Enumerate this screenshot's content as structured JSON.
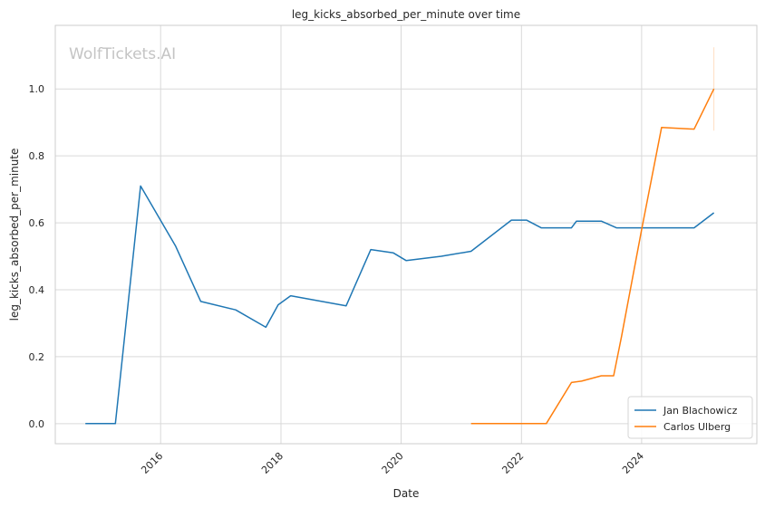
{
  "chart_data": {
    "type": "line",
    "title": "leg_kicks_absorbed_per_minute over time",
    "xlabel": "Date",
    "ylabel": "leg_kicks_absorbed_per_minute",
    "watermark": "WolfTickets.AI",
    "xlim": [
      "2014-04-01",
      "2025-12-01"
    ],
    "ylim": [
      -0.06,
      1.19
    ],
    "x_ticks": [
      {
        "label": "2016",
        "date": "2016-01-01"
      },
      {
        "label": "2018",
        "date": "2018-01-01"
      },
      {
        "label": "2020",
        "date": "2020-01-01"
      },
      {
        "label": "2022",
        "date": "2022-01-01"
      },
      {
        "label": "2024",
        "date": "2024-01-01"
      }
    ],
    "y_ticks": [
      {
        "label": "0.0",
        "value": 0.0
      },
      {
        "label": "0.2",
        "value": 0.2
      },
      {
        "label": "0.4",
        "value": 0.4
      },
      {
        "label": "0.6",
        "value": 0.6
      },
      {
        "label": "0.8",
        "value": 0.8
      },
      {
        "label": "1.0",
        "value": 1.0
      }
    ],
    "grid": true,
    "legend_position": "lower-right",
    "series": [
      {
        "name": "Jan Blachowicz",
        "color": "#1f77b4",
        "points": [
          {
            "x": "2014-10-01",
            "y": 0.0
          },
          {
            "x": "2015-04-01",
            "y": 0.0
          },
          {
            "x": "2015-09-01",
            "y": 0.71
          },
          {
            "x": "2016-04-01",
            "y": 0.53
          },
          {
            "x": "2016-09-01",
            "y": 0.365
          },
          {
            "x": "2017-04-01",
            "y": 0.34
          },
          {
            "x": "2017-10-01",
            "y": 0.288
          },
          {
            "x": "2017-12-15",
            "y": 0.355
          },
          {
            "x": "2018-03-01",
            "y": 0.382
          },
          {
            "x": "2019-02-01",
            "y": 0.352
          },
          {
            "x": "2019-07-01",
            "y": 0.52
          },
          {
            "x": "2019-11-15",
            "y": 0.51
          },
          {
            "x": "2020-02-01",
            "y": 0.487
          },
          {
            "x": "2020-09-01",
            "y": 0.5
          },
          {
            "x": "2021-03-01",
            "y": 0.515
          },
          {
            "x": "2021-11-01",
            "y": 0.608
          },
          {
            "x": "2022-02-01",
            "y": 0.608
          },
          {
            "x": "2022-05-01",
            "y": 0.585
          },
          {
            "x": "2022-11-01",
            "y": 0.585
          },
          {
            "x": "2022-12-01",
            "y": 0.605
          },
          {
            "x": "2023-05-01",
            "y": 0.605
          },
          {
            "x": "2023-08-01",
            "y": 0.585
          },
          {
            "x": "2024-11-15",
            "y": 0.585
          },
          {
            "x": "2025-03-15",
            "y": 0.63
          }
        ]
      },
      {
        "name": "Carlos Ulberg",
        "color": "#ff7f0e",
        "points": [
          {
            "x": "2021-03-01",
            "y": 0.0
          },
          {
            "x": "2022-06-01",
            "y": 0.0
          },
          {
            "x": "2022-11-01",
            "y": 0.123
          },
          {
            "x": "2023-01-01",
            "y": 0.127
          },
          {
            "x": "2023-05-01",
            "y": 0.143
          },
          {
            "x": "2023-07-15",
            "y": 0.143
          },
          {
            "x": "2023-09-01",
            "y": 0.26
          },
          {
            "x": "2024-01-01",
            "y": 0.58
          },
          {
            "x": "2024-05-01",
            "y": 0.885
          },
          {
            "x": "2024-11-15",
            "y": 0.88
          },
          {
            "x": "2025-03-15",
            "y": 1.0
          }
        ]
      }
    ]
  }
}
